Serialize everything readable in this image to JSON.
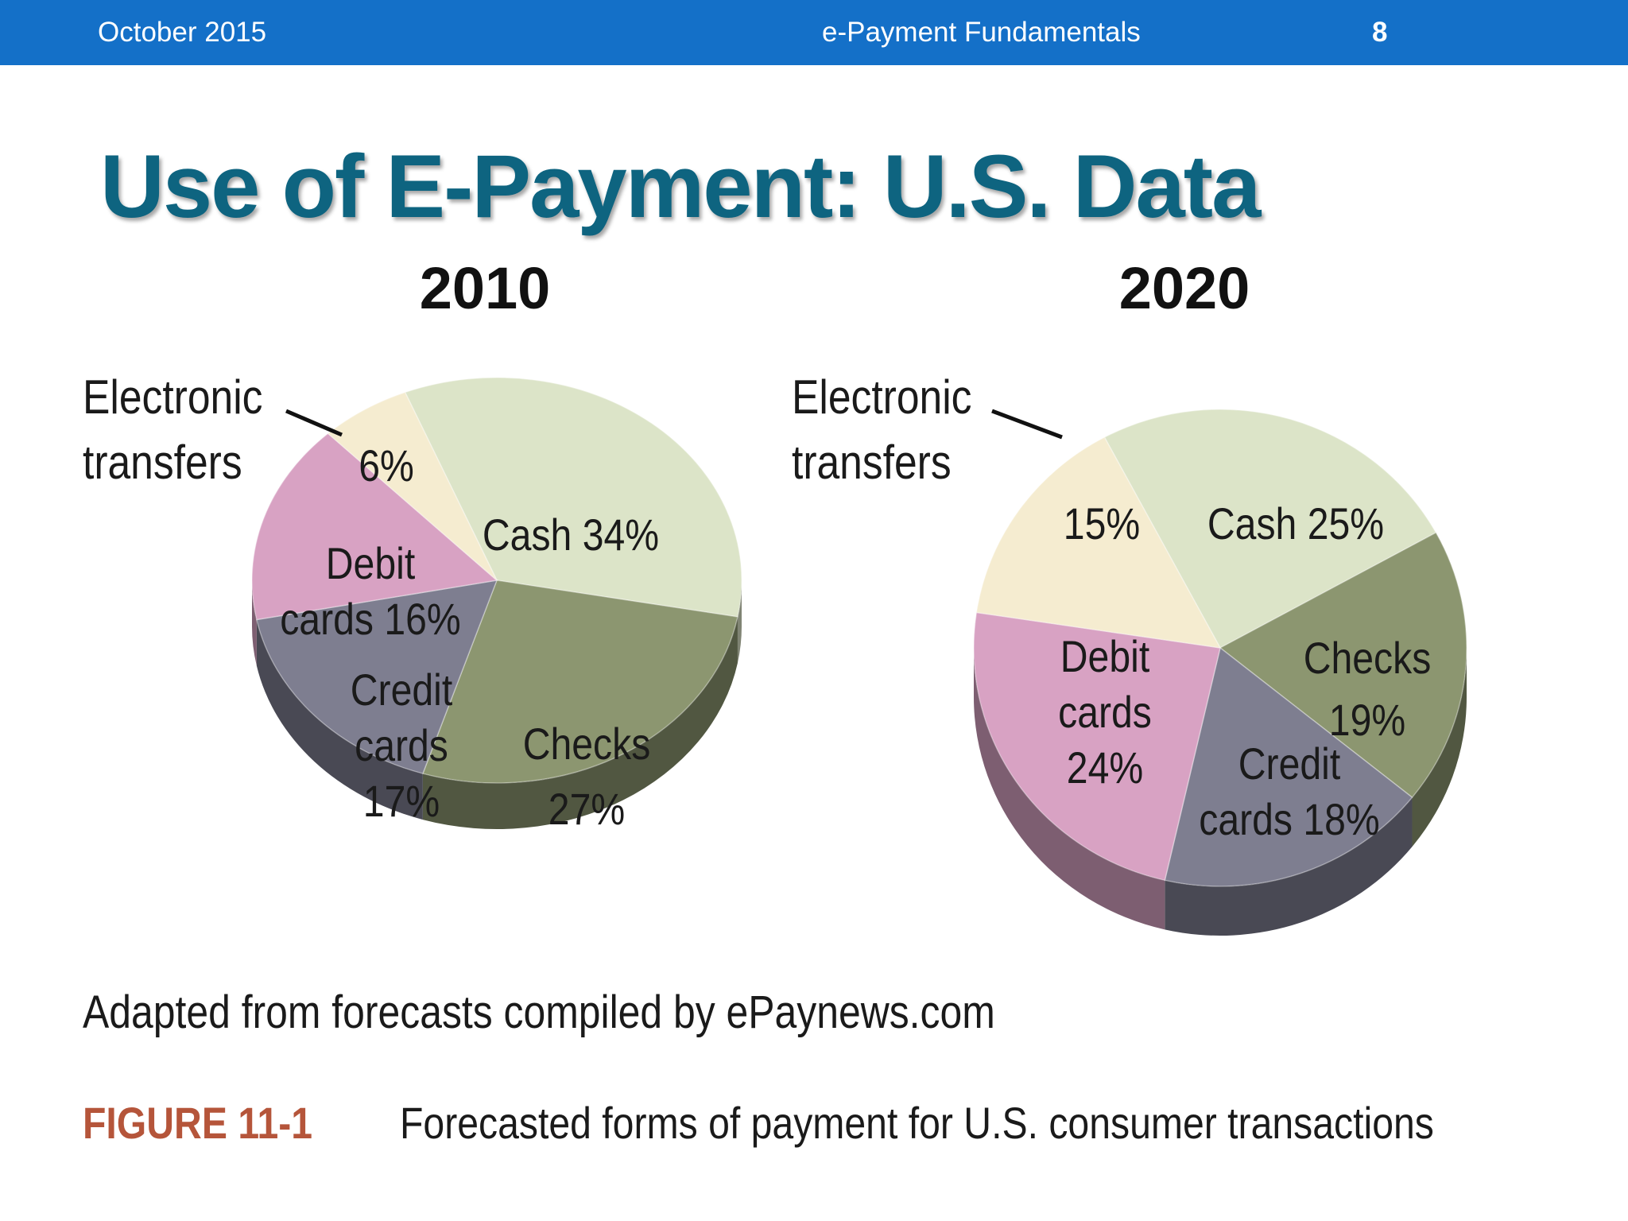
{
  "header": {
    "date": "October 2015",
    "title": "e-Payment Fundamentals",
    "page_number": "8"
  },
  "slide_title": "Use of E-Payment: U.S. Data",
  "source": "Adapted from forecasts compiled by ePaynews.com",
  "figure": {
    "label": "FIGURE 11-1",
    "caption": "Forecasted forms of payment for U.S. consumer transactions"
  },
  "colors": {
    "cash": "#dce4c8",
    "checks": "#8c9670",
    "credit": "#7e7e90",
    "debit": "#d8a2c3",
    "electronic": "#f5ecd0",
    "header": "#1470c8",
    "title": "#0e6480"
  },
  "chart_data": [
    {
      "type": "pie",
      "title": "2010",
      "callout": [
        "Electronic",
        "transfers"
      ],
      "slices": [
        {
          "key": "cash",
          "label": [
            "Cash 34%"
          ],
          "value": 34
        },
        {
          "key": "checks",
          "label": [
            "Checks",
            "27%"
          ],
          "value": 27
        },
        {
          "key": "credit",
          "label": [
            "Credit",
            "cards",
            "17%"
          ],
          "value": 17
        },
        {
          "key": "debit",
          "label": [
            "Debit",
            "cards 16%"
          ],
          "value": 16
        },
        {
          "key": "electronic",
          "label": [
            "6%"
          ],
          "value": 6
        }
      ]
    },
    {
      "type": "pie",
      "title": "2020",
      "callout": [
        "Electronic",
        "transfers"
      ],
      "slices": [
        {
          "key": "cash",
          "label": [
            "Cash 25%"
          ],
          "value": 25
        },
        {
          "key": "checks",
          "label": [
            "Checks",
            "19%"
          ],
          "value": 19
        },
        {
          "key": "credit",
          "label": [
            "Credit",
            "cards 18%"
          ],
          "value": 18
        },
        {
          "key": "debit",
          "label": [
            "Debit",
            "cards",
            "24%"
          ],
          "value": 24
        },
        {
          "key": "electronic",
          "label": [
            "15%"
          ],
          "value": 15
        }
      ]
    }
  ]
}
